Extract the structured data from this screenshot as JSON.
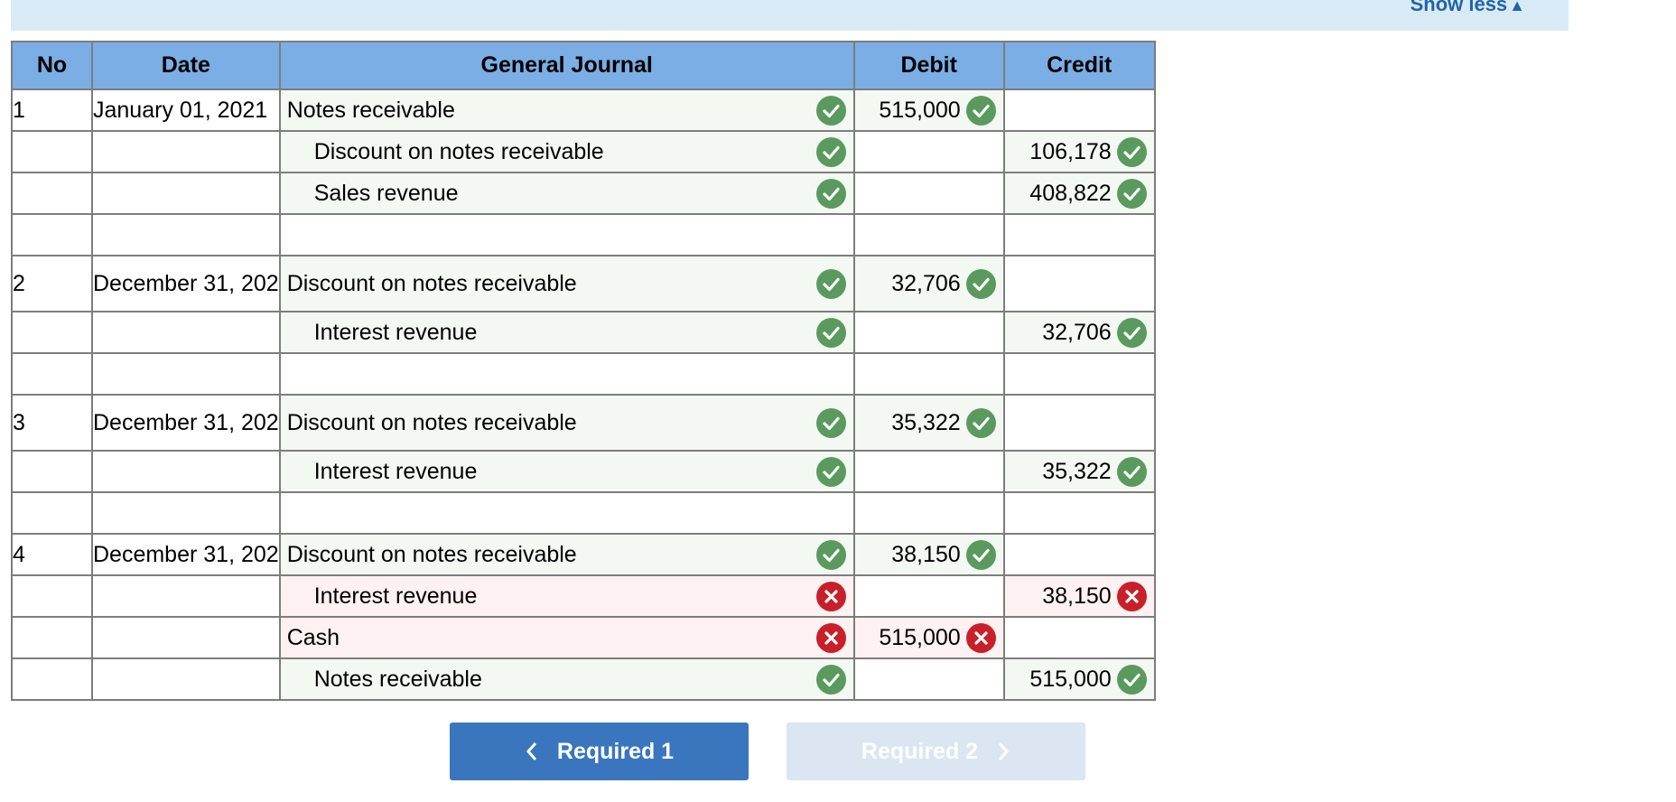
{
  "header": {
    "show_less_label": "Show less",
    "show_less_icon": "triangle-up-icon"
  },
  "table": {
    "columns": [
      "No",
      "Date",
      "General Journal",
      "Debit",
      "Credit"
    ],
    "rows": [
      {
        "no": "1",
        "date": "January 01, 2021",
        "account": "Notes receivable",
        "debit": "515,000",
        "credit": "",
        "status": "correct"
      },
      {
        "no": "",
        "date": "",
        "account": "Discount on notes receivable",
        "debit": "",
        "credit": "106,178",
        "status": "correct"
      },
      {
        "no": "",
        "date": "",
        "account": "Sales revenue",
        "debit": "",
        "credit": "408,822",
        "status": "correct"
      },
      {
        "no": "2",
        "date": "December 31, 202",
        "account": "Discount on notes receivable",
        "debit": "32,706",
        "credit": "",
        "status": "correct"
      },
      {
        "no": "",
        "date": "",
        "account": "Interest revenue",
        "debit": "",
        "credit": "32,706",
        "status": "correct"
      },
      {
        "no": "3",
        "date": "December 31, 202",
        "account": "Discount on notes receivable",
        "debit": "35,322",
        "credit": "",
        "status": "correct"
      },
      {
        "no": "",
        "date": "",
        "account": "Interest revenue",
        "debit": "",
        "credit": "35,322",
        "status": "correct"
      },
      {
        "no": "4",
        "date": "December 31, 202",
        "account": "Discount on notes receivable",
        "debit": "38,150",
        "credit": "",
        "status": "correct"
      },
      {
        "no": "",
        "date": "",
        "account": "Interest revenue",
        "debit": "",
        "credit": "38,150",
        "status": "incorrect"
      },
      {
        "no": "",
        "date": "",
        "account": "Cash",
        "debit": "515,000",
        "credit": "",
        "status": "incorrect"
      },
      {
        "no": "",
        "date": "",
        "account": "Notes receivable",
        "debit": "",
        "credit": "515,000",
        "status": "correct"
      }
    ]
  },
  "icons": {
    "correct": "check-circle-icon",
    "incorrect": "x-circle-icon"
  },
  "colors": {
    "header_bg": "#7aaee4",
    "correct": "#5a9a5e",
    "incorrect": "#c8202a",
    "primary_button": "#3a76bd",
    "disabled_button": "#dbe6f2"
  },
  "navigation": {
    "prev_label": "Required 1",
    "next_label": "Required 2",
    "next_disabled": true
  }
}
